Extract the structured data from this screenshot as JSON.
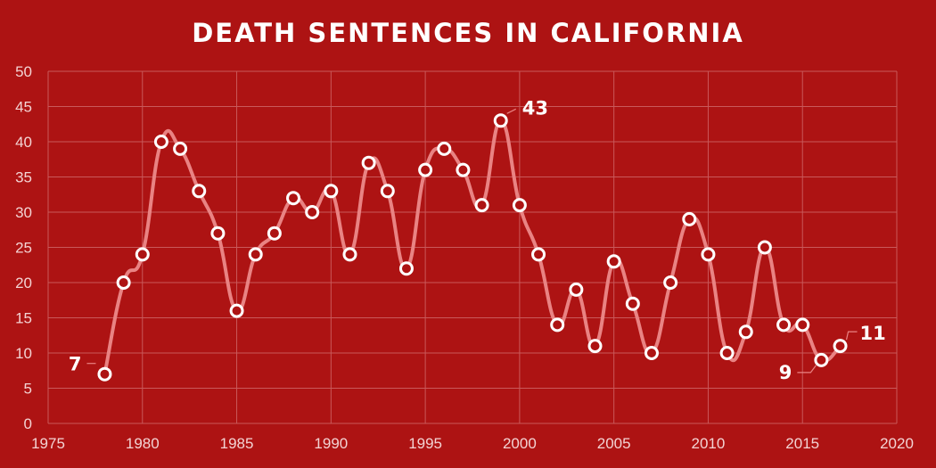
{
  "chart_data": {
    "type": "line",
    "title": "DEATH SENTENCES IN CALIFORNIA",
    "xlabel": "",
    "ylabel": "",
    "xlim": [
      1975,
      2020
    ],
    "ylim": [
      0,
      50
    ],
    "x_ticks": [
      "1975",
      "1980",
      "1985",
      "1990",
      "1995",
      "2000",
      "2005",
      "2010",
      "2015",
      "2020"
    ],
    "y_ticks": [
      "0",
      "5",
      "10",
      "15",
      "20",
      "25",
      "30",
      "35",
      "40",
      "45",
      "50"
    ],
    "grid": true,
    "smoothed": true,
    "series": [
      {
        "x": [
          1978,
          1979,
          1980,
          1981,
          1982,
          1983,
          1984,
          1985,
          1986,
          1987,
          1988,
          1989,
          1990,
          1991,
          1992,
          1993,
          1994,
          1995,
          1996,
          1997,
          1998,
          1999,
          2000,
          2001,
          2002,
          2003,
          2004,
          2005,
          2006,
          2007,
          2008,
          2009,
          2010,
          2011,
          2012,
          2013,
          2014,
          2015,
          2016,
          2017
        ],
        "values": [
          7,
          20,
          24,
          40,
          39,
          33,
          27,
          16,
          24,
          27,
          32,
          30,
          33,
          24,
          37,
          33,
          22,
          36,
          39,
          36,
          31,
          43,
          31,
          24,
          14,
          19,
          11,
          23,
          17,
          10,
          20,
          29,
          24,
          10,
          13,
          25,
          14,
          14,
          9,
          11
        ]
      }
    ],
    "annotations": [
      {
        "x": 1978,
        "y": 7,
        "text": "7"
      },
      {
        "x": 1999,
        "y": 43,
        "text": "43"
      },
      {
        "x": 2016,
        "y": 9,
        "text": "9"
      },
      {
        "x": 2017,
        "y": 11,
        "text": "11"
      }
    ],
    "colors": {
      "background": "#ad1313",
      "line": "#e98383",
      "marker_fill": "#ad1313",
      "marker_stroke": "#ffffff",
      "grid": "#c9595a",
      "text": "#ffffff"
    }
  }
}
